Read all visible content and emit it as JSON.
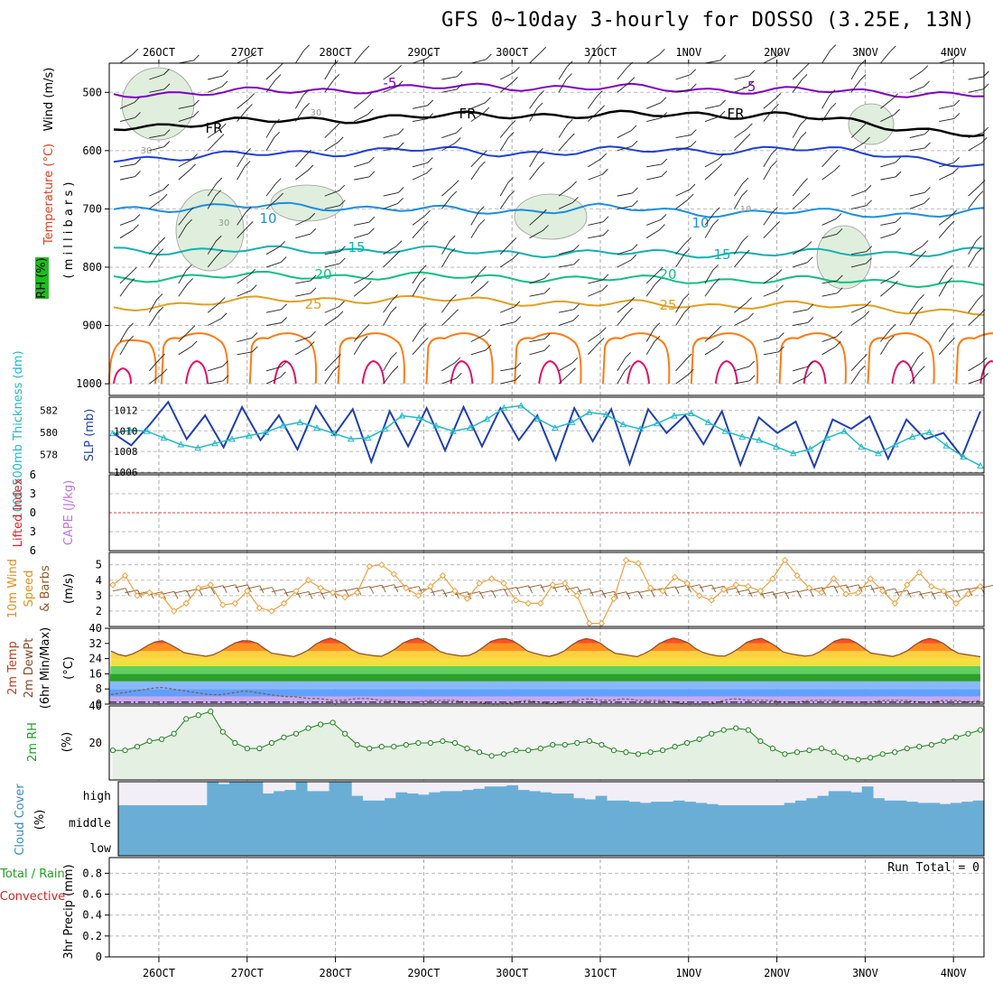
{
  "title": "GFS 0~10day 3-hourly for DOSSO (3.25E, 13N)",
  "chart_data": {
    "type": "meteogram",
    "dates": [
      "26OCT",
      "27OCT",
      "28OCT",
      "29OCT",
      "30OCT",
      "31OCT",
      "1NOV",
      "2NOV",
      "3NOV",
      "4NOV"
    ],
    "panels": {
      "upper_air": {
        "ylabel_wind": "Wind (m/s)",
        "ylabel_temp": "Temperature (°C)",
        "ylabel_rh": "RH (%)",
        "ylabel_unit": "( m i l l i b a r s )",
        "yticks": [
          500,
          600,
          700,
          800,
          900,
          1000
        ],
        "ylim": [
          450,
          1020
        ],
        "isotherms": [
          {
            "label": "-5",
            "color": "#8000c0",
            "values": [
              503,
              500,
              497,
              493,
              490,
              492,
              495,
              497,
              500,
              505
            ]
          },
          {
            "label": "FR",
            "color": "#000000",
            "values": [
              560,
              552,
              547,
              543,
              538,
              540,
              537,
              540,
              557,
              575
            ]
          },
          {
            "label": "-",
            "color": "#1f3fd8",
            "values": [
              615,
              608,
              605,
              597,
              605,
              600,
              600,
              597,
              605,
              630
            ]
          },
          {
            "label": "10",
            "color": "#1a8fe0",
            "values": [
              700,
              697,
              695,
              700,
              705,
              697,
              707,
              705,
              710,
              705
            ]
          },
          {
            "label": "15",
            "color": "#12b0b0",
            "values": [
              770,
              772,
              770,
              770,
              775,
              776,
              777,
              776,
              776,
              772
            ]
          },
          {
            "label": "20",
            "color": "#10c080",
            "values": [
              820,
              815,
              815,
              815,
              818,
              820,
              822,
              822,
              825,
              830
            ]
          },
          {
            "label": "25",
            "color": "#e0a020",
            "values": [
              870,
              860,
              855,
              855,
              858,
              863,
              865,
              865,
              870,
              880
            ]
          }
        ],
        "contour_labels": [
          "-5",
          "-5",
          "FR",
          "FR",
          "FR",
          "10",
          "10",
          "15",
          "15",
          "20",
          "20",
          "25",
          "25",
          "30",
          "30",
          "30",
          "10"
        ]
      },
      "thickness_slp": {
        "ylabel_thickness": "1000-500mb Thickness (dm)",
        "ylabel_slp": "SLP (mb)",
        "thickness_ticks": [
          578,
          580,
          582
        ],
        "slp_ticks": [
          1006,
          1008,
          1010,
          1012
        ],
        "slp": [
          1009.8,
          1008.6,
          1010.6,
          1012.8,
          1009.2,
          1011.5,
          1008.4,
          1012.3,
          1009.1,
          1011.5,
          1008.2,
          1012.4,
          1009.6,
          1012.1,
          1007,
          1011.9,
          1008.5,
          1012.2,
          1008.1,
          1012.3,
          1008.5,
          1012.2,
          1009.1,
          1011.5,
          1007.2,
          1012.2,
          1009,
          1012.1,
          1006.8,
          1012.1,
          1009.8,
          1011.5,
          1008.7,
          1011.9,
          1006.7,
          1011.3,
          1009.8,
          1010.9,
          1006.5,
          1011.1,
          1010.2,
          1011.4,
          1007.3,
          1011.1,
          1009.2,
          1009.8,
          1007.5,
          1011.9
        ],
        "thickness": [
          579.9,
          580.2,
          580.1,
          579.5,
          578.9,
          578.6,
          579,
          579.4,
          579.7,
          580,
          580.6,
          580.9,
          580.4,
          579.9,
          579.4,
          579.5,
          580.3,
          581.5,
          581.3,
          580.6,
          580.1,
          580.4,
          581.2,
          582.2,
          582.4,
          581.2,
          580.4,
          580.9,
          581.8,
          581.6,
          580.7,
          580.3,
          580.8,
          581.5,
          581.7,
          580.9,
          580.1,
          579.6,
          579.3,
          578.7,
          578.1,
          578.5,
          579.5,
          580.1,
          578.7,
          578.1,
          578.9,
          579.6,
          580,
          578.8,
          577.8,
          577
        ]
      },
      "instability": {
        "ylabel_li": "Lifted Index",
        "ylabel_cape": "CAPE (J/kg)",
        "yticks": [
          -6,
          -3,
          0,
          3,
          6
        ],
        "tick_labels": [
          "6",
          "3",
          "0",
          "3",
          "6"
        ],
        "lifted_index": [],
        "cape": []
      },
      "wind10m": {
        "ylabel_a": "10m Wind",
        "ylabel_b": "Speed",
        "ylabel_c": "& Barbs",
        "ylabel_unit": "(m/s)",
        "yticks": [
          2,
          3,
          4,
          5
        ],
        "speed": [
          3.7,
          4.3,
          3,
          3.2,
          3,
          2,
          2.5,
          3.5,
          3.7,
          2.4,
          2.5,
          3.3,
          2.2,
          2,
          2.5,
          3.3,
          4,
          3.5,
          3.2,
          2.9,
          3.2,
          4.9,
          5,
          4.4,
          3.5,
          3,
          3.6,
          4.3,
          3.3,
          2.8,
          3.8,
          4.1,
          3.8,
          2.7,
          2.5,
          2.5,
          3.7,
          3.8,
          3,
          1.2,
          1.2,
          2.8,
          5.3,
          5.1,
          3.5,
          3.3,
          4.2,
          3.8,
          3,
          2.7,
          3.4,
          3.7,
          3.6,
          3.3,
          4.1,
          5.3,
          4.3,
          3.5,
          3.2,
          4.1,
          3.1,
          3.2,
          4.1,
          3.3,
          2.5,
          3.7,
          4.5,
          3.6,
          3.3,
          2.5,
          3.1,
          3.6
        ]
      },
      "temp2m": {
        "ylabel_a": "2m Temp",
        "ylabel_b": "2m DewPt",
        "ylabel_c": "(6hr Min/Max)",
        "ylabel_unit": "(°C)",
        "yticks": [
          0,
          8,
          16,
          24,
          32,
          40
        ],
        "temp": [
          28,
          25,
          27,
          31,
          34,
          31,
          27,
          26,
          25,
          28,
          32,
          34,
          32,
          27,
          26,
          25,
          28,
          33,
          35,
          32,
          27,
          26,
          25,
          28,
          33,
          35,
          32,
          27,
          26,
          25,
          28,
          33,
          35,
          33,
          28,
          26,
          25,
          28,
          33,
          35,
          32,
          27,
          26,
          25,
          28,
          33,
          35,
          33,
          28,
          26,
          25,
          28,
          33,
          35,
          32,
          27,
          26,
          25,
          28,
          33,
          35,
          32,
          27,
          26,
          25,
          28,
          33,
          35,
          32,
          27,
          26,
          25
        ],
        "dewpt": [
          5,
          6,
          7,
          8,
          9,
          8,
          7,
          6,
          5,
          5,
          6,
          7,
          6,
          5,
          4,
          4,
          3,
          3,
          2,
          2,
          3,
          3,
          2,
          2,
          1,
          1,
          2,
          2,
          2,
          1,
          1,
          0,
          0,
          1,
          2,
          1,
          0,
          1,
          2,
          3,
          2,
          2,
          3,
          2,
          2,
          2,
          1,
          0,
          0,
          0,
          2,
          3,
          2,
          2,
          2,
          1,
          1,
          2,
          2,
          2,
          1,
          1,
          1,
          2,
          2,
          2,
          1,
          1,
          2,
          2,
          1,
          2
        ]
      },
      "rh2m": {
        "ylabel": "2m RH",
        "ylabel_unit": "(%)",
        "yticks": [
          20,
          40
        ],
        "rh": [
          16,
          16,
          18,
          21,
          22,
          25,
          33,
          35,
          37,
          26,
          20,
          17,
          17,
          20,
          23,
          25,
          28,
          30,
          31,
          25,
          19,
          17,
          18,
          18,
          19,
          20,
          20,
          21,
          20,
          17,
          15,
          13,
          14,
          16,
          16,
          17,
          19,
          19,
          20,
          21,
          19,
          16,
          15,
          14,
          15,
          16,
          18,
          20,
          22,
          25,
          27,
          28,
          27,
          21,
          17,
          14,
          15,
          16,
          17,
          15,
          12,
          11,
          12,
          14,
          15,
          17,
          18,
          19,
          21,
          23,
          25,
          27
        ]
      },
      "cloud": {
        "ylabel": "Cloud Cover",
        "ylabel_unit": "(%)",
        "levels": [
          "high",
          "middle",
          "low"
        ],
        "high_cover": [
          0,
          0,
          0,
          0,
          0,
          0,
          0,
          0,
          100,
          90,
          100,
          100,
          100,
          50,
          60,
          65,
          100,
          60,
          60,
          100,
          100,
          40,
          20,
          20,
          30,
          55,
          50,
          45,
          55,
          60,
          60,
          65,
          70,
          80,
          80,
          85,
          65,
          60,
          55,
          50,
          50,
          30,
          25,
          40,
          20,
          20,
          15,
          10,
          15,
          15,
          20,
          15,
          10,
          5,
          0,
          0,
          0,
          0,
          0,
          0,
          10,
          20,
          30,
          40,
          60,
          60,
          55,
          80,
          30,
          20,
          20,
          15,
          10,
          10,
          5,
          10,
          15,
          20
        ],
        "middle_cover": [
          100
        ],
        "low_cover": [
          100
        ]
      },
      "precip": {
        "ylabel_a": "3hr Precip (mm)",
        "ylabel_b": "Total / Rain",
        "ylabel_c": "Convective",
        "yticks": [
          0,
          0.2,
          0.4,
          0.6,
          0.8
        ],
        "run_total_label": "Run Total = 0",
        "total": [],
        "convective": []
      }
    },
    "colors": {
      "minus5": "#8000c0",
      "freezing": "#000000",
      "five": "#1f3fd8",
      "ten": "#1a8fe0",
      "fifteen": "#12b0b0",
      "twenty": "#10c080",
      "twentyfive": "#e0a020",
      "thirty": "#ff7a10",
      "thirtyfive": "#e0106a",
      "slp": "#1f3fb0",
      "thickness": "#22b8c8",
      "wind10m": "#f0a040",
      "rh": "#30a030",
      "cloud": "#6aaed6"
    }
  }
}
